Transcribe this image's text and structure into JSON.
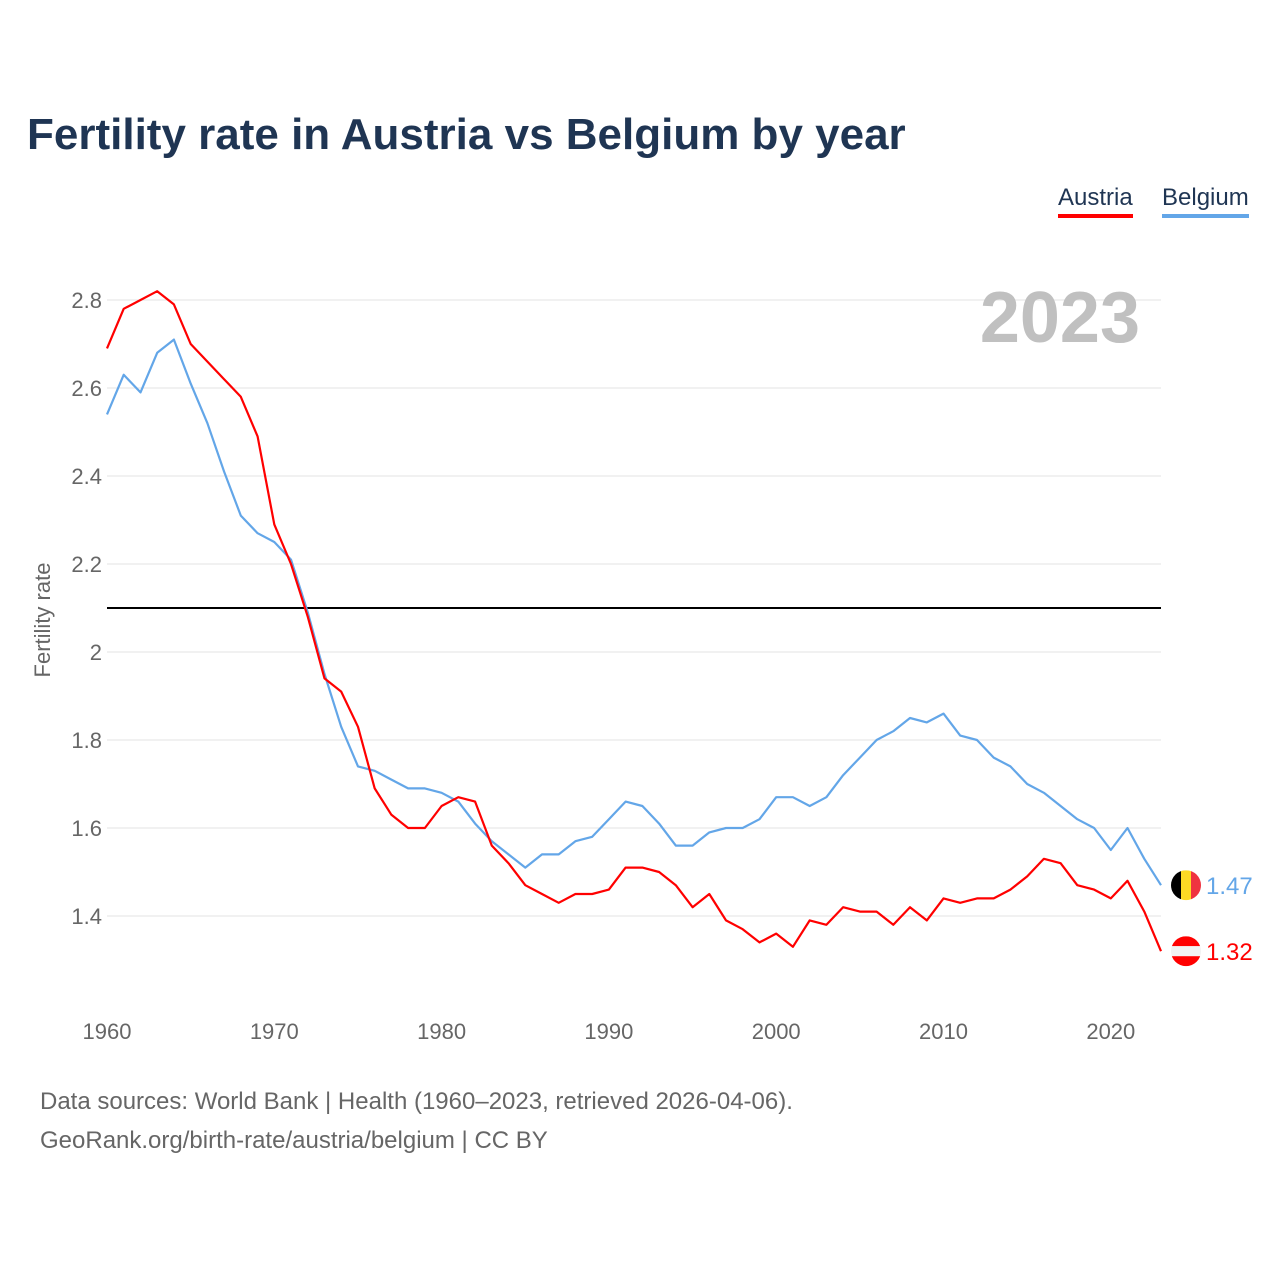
{
  "chart_data": {
    "type": "line",
    "title": "Fertility rate in Austria vs Belgium by year",
    "ylabel": "Fertility rate",
    "xlabel": "",
    "year_watermark": "2023",
    "ylim": [
      1.2,
      2.9
    ],
    "xlim": [
      1960,
      2023
    ],
    "y_ticks": [
      "1.4",
      "1.6",
      "1.8",
      "2",
      "2.2",
      "2.4",
      "2.6",
      "2.8"
    ],
    "x_ticks": [
      "1960",
      "1970",
      "1980",
      "1990",
      "2000",
      "2010",
      "2020"
    ],
    "reference_line": 2.1,
    "grid": true,
    "legend_position": "top-right",
    "x": [
      1960,
      1961,
      1962,
      1963,
      1964,
      1965,
      1966,
      1967,
      1968,
      1969,
      1970,
      1971,
      1972,
      1973,
      1974,
      1975,
      1976,
      1977,
      1978,
      1979,
      1980,
      1981,
      1982,
      1983,
      1984,
      1985,
      1986,
      1987,
      1988,
      1989,
      1990,
      1991,
      1992,
      1993,
      1994,
      1995,
      1996,
      1997,
      1998,
      1999,
      2000,
      2001,
      2002,
      2003,
      2004,
      2005,
      2006,
      2007,
      2008,
      2009,
      2010,
      2011,
      2012,
      2013,
      2014,
      2015,
      2016,
      2017,
      2018,
      2019,
      2020,
      2021,
      2022,
      2023
    ],
    "series": [
      {
        "name": "Austria",
        "color": "#ff0000",
        "end_label": "1.32",
        "flag": "austria-flag",
        "values": [
          2.69,
          2.78,
          2.8,
          2.82,
          2.79,
          2.7,
          2.66,
          2.62,
          2.58,
          2.49,
          2.29,
          2.2,
          2.08,
          1.94,
          1.91,
          1.83,
          1.69,
          1.63,
          1.6,
          1.6,
          1.65,
          1.67,
          1.66,
          1.56,
          1.52,
          1.47,
          1.45,
          1.43,
          1.45,
          1.45,
          1.46,
          1.51,
          1.51,
          1.5,
          1.47,
          1.42,
          1.45,
          1.39,
          1.37,
          1.34,
          1.36,
          1.33,
          1.39,
          1.38,
          1.42,
          1.41,
          1.41,
          1.38,
          1.42,
          1.39,
          1.44,
          1.43,
          1.44,
          1.44,
          1.46,
          1.49,
          1.53,
          1.52,
          1.47,
          1.46,
          1.44,
          1.48,
          1.41,
          1.32
        ]
      },
      {
        "name": "Belgium",
        "color": "#63a6e8",
        "end_label": "1.47",
        "flag": "belgium-flag",
        "values": [
          2.54,
          2.63,
          2.59,
          2.68,
          2.71,
          2.61,
          2.52,
          2.41,
          2.31,
          2.27,
          2.25,
          2.21,
          2.09,
          1.95,
          1.83,
          1.74,
          1.73,
          1.71,
          1.69,
          1.69,
          1.68,
          1.66,
          1.61,
          1.57,
          1.54,
          1.51,
          1.54,
          1.54,
          1.57,
          1.58,
          1.62,
          1.66,
          1.65,
          1.61,
          1.56,
          1.56,
          1.59,
          1.6,
          1.6,
          1.62,
          1.67,
          1.67,
          1.65,
          1.67,
          1.72,
          1.76,
          1.8,
          1.82,
          1.85,
          1.84,
          1.86,
          1.81,
          1.8,
          1.76,
          1.74,
          1.7,
          1.68,
          1.65,
          1.62,
          1.6,
          1.55,
          1.6,
          1.53,
          1.47
        ]
      }
    ]
  },
  "footer": {
    "line1": "Data sources: World Bank | Health (1960–2023, retrieved 2026-04-06).",
    "line2": "GeoRank.org/birth-rate/austria/belgium | CC BY"
  }
}
